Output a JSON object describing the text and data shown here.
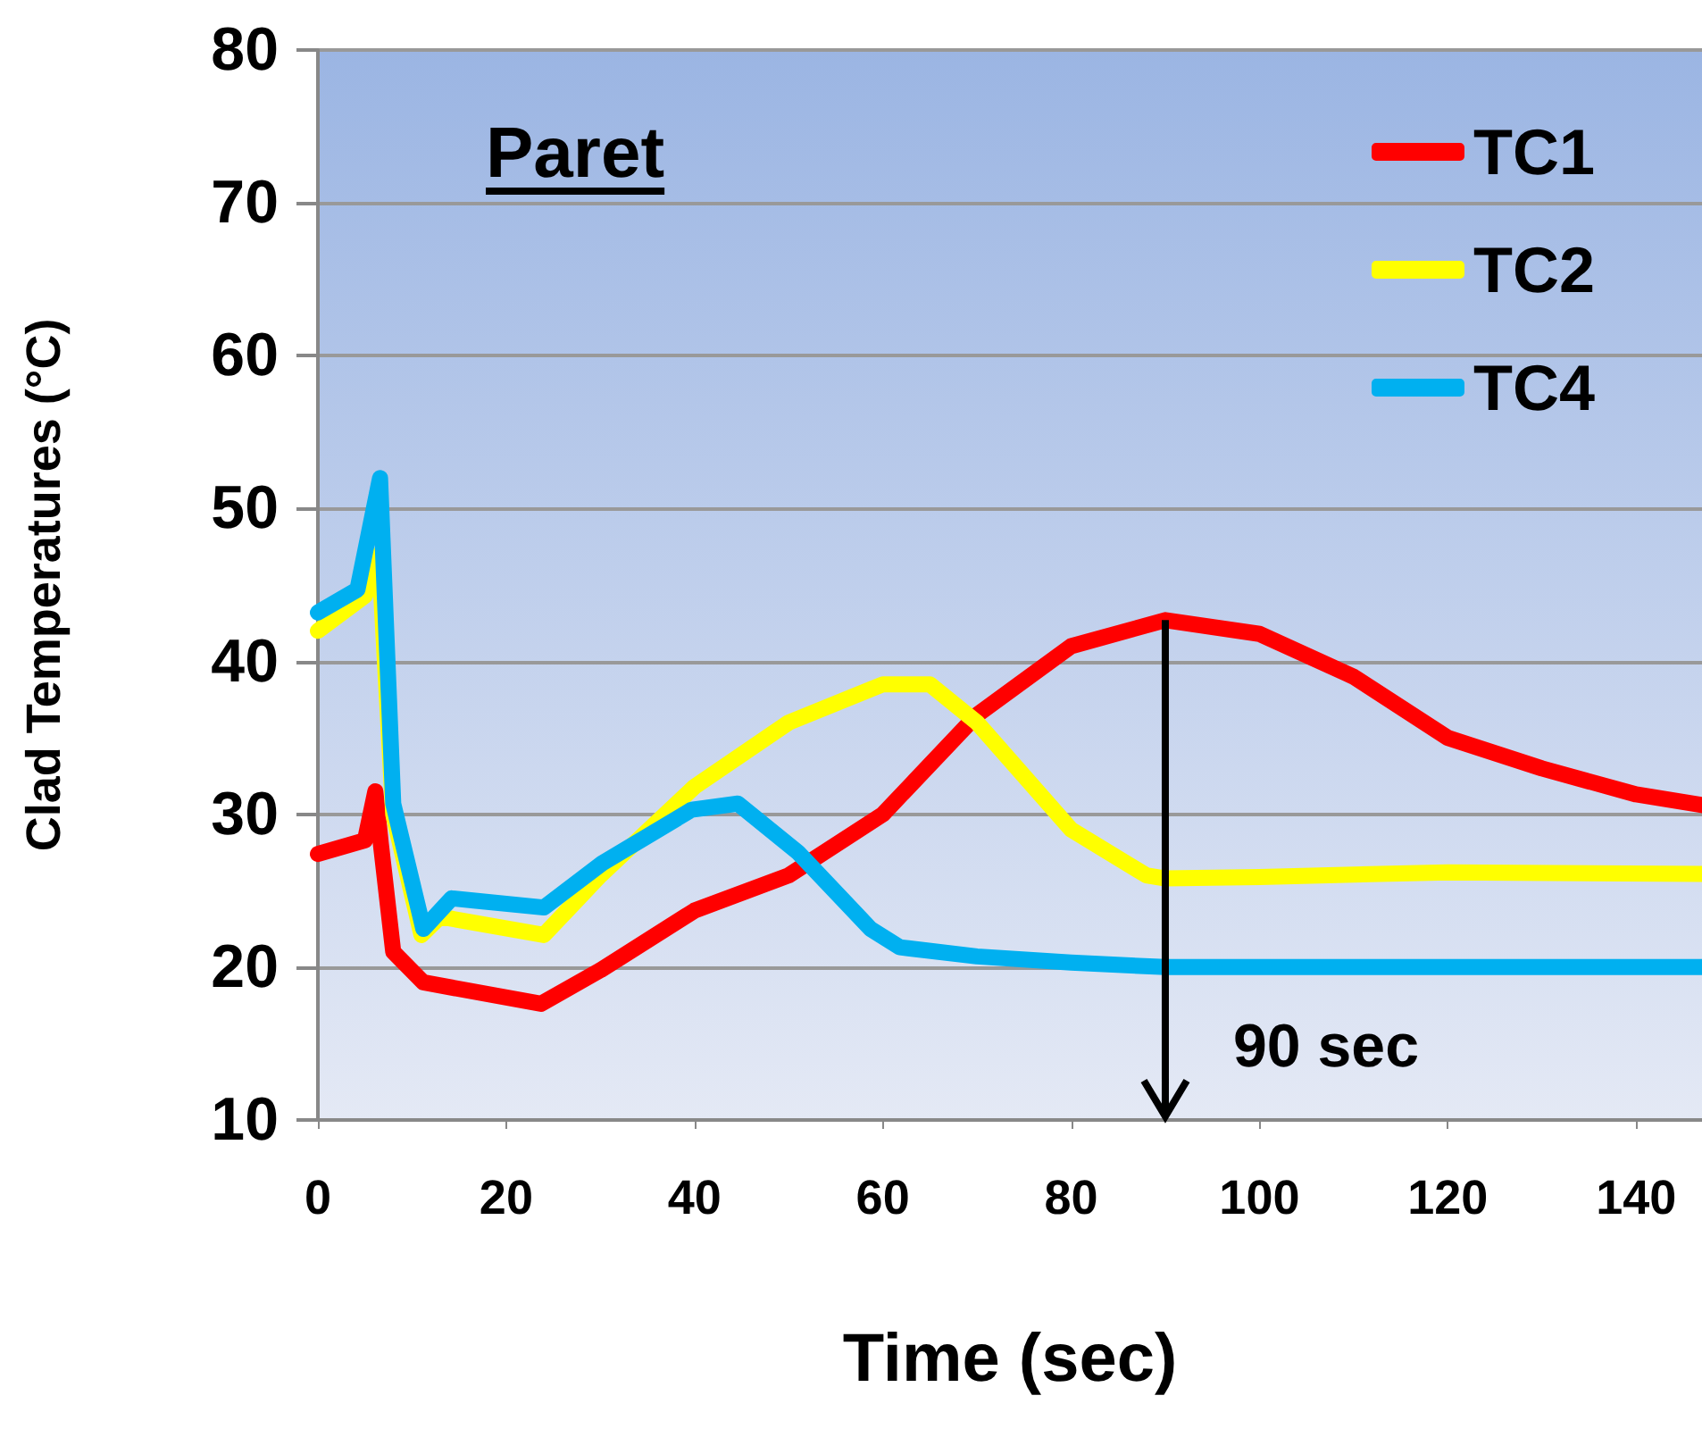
{
  "chart_data": {
    "type": "line",
    "xlabel": "Time (sec)",
    "ylabel": "Clad Temperatures (°C)",
    "annotations": [
      "Paret"
    ],
    "xlim": [
      0,
      147
    ],
    "xticks": [
      0,
      20,
      40,
      60,
      80,
      100,
      120,
      140
    ],
    "ylim": [
      10,
      80
    ],
    "yticks": [
      10,
      20,
      30,
      40,
      50,
      60,
      70,
      80
    ],
    "grid": "y",
    "legend": "top right",
    "marker": "none",
    "line_style": "solid",
    "ref_lines": [
      {
        "axis": "x",
        "value": 90,
        "label": "90 sec",
        "color": "#000000"
      }
    ],
    "series": [
      {
        "name": "TC1",
        "color": "#ff0000",
        "x": [
          0,
          5,
          6.1,
          6.7,
          8,
          11.2,
          23.7,
          30,
          40,
          50,
          60,
          70,
          80,
          90,
          100,
          110,
          120,
          130,
          140,
          147
        ],
        "values": [
          27.4,
          28.3,
          31.5,
          28,
          21,
          19,
          17.6,
          19.8,
          23.7,
          26,
          30,
          36.5,
          41,
          42.7,
          41.8,
          39,
          35,
          33,
          31.3,
          30.6
        ]
      },
      {
        "name": "TC2",
        "color": "#ffff00",
        "x": [
          0,
          5,
          6.5,
          8,
          11,
          13,
          24,
          30,
          40,
          50,
          60,
          65,
          70,
          80,
          88,
          90,
          100,
          120,
          147
        ],
        "values": [
          42,
          44.3,
          47,
          30,
          22.1,
          23.3,
          22.1,
          26,
          31.8,
          36,
          38.5,
          38.5,
          36,
          29,
          26,
          25.8,
          25.9,
          26.2,
          26.1
        ]
      },
      {
        "name": "TC4",
        "color": "#00b0f0",
        "x": [
          0,
          4.2,
          6.6,
          8,
          11.2,
          14.2,
          24,
          30.2,
          39.7,
          44.6,
          51,
          58.7,
          61.8,
          70,
          80,
          90,
          147
        ],
        "values": [
          43.2,
          44.7,
          52,
          30.7,
          22.5,
          24.5,
          23.9,
          26.8,
          30.3,
          30.7,
          27.5,
          22.5,
          21.3,
          20.7,
          20.3,
          20,
          20
        ]
      }
    ]
  }
}
